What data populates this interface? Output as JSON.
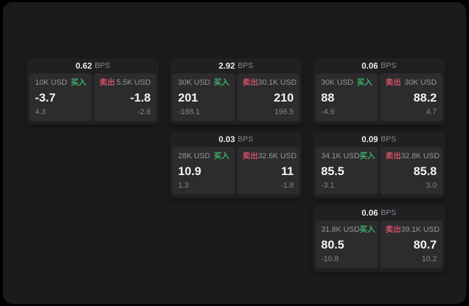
{
  "theme": {
    "page_bg": "#000000",
    "surface_bg": "#1b1b1d",
    "card_bg": "#202023",
    "panel_bg": "#2c2c2e",
    "buy_green": "#3fb069",
    "sell_red": "#ce5164",
    "text_primary": "#f4f4f6",
    "text_muted": "#86868b"
  },
  "labels": {
    "bps_suffix": "BPS",
    "buy": "买入",
    "sell": "卖出"
  },
  "cards": [
    {
      "bps": "0.62",
      "buy": {
        "size": "10K USD",
        "price": "-3.7",
        "delta": "4.3"
      },
      "sell": {
        "size": "5.5K USD",
        "price": "-1.8",
        "delta": "-2.6"
      }
    },
    {
      "bps": "2.92",
      "buy": {
        "size": "30K USD",
        "price": "201",
        "delta": "-188.1"
      },
      "sell": {
        "size": "30.1K USD",
        "price": "210",
        "delta": "196.5"
      }
    },
    {
      "bps": "0.06",
      "buy": {
        "size": "30K USD",
        "price": "88",
        "delta": "-4.9"
      },
      "sell": {
        "size": "30K USD",
        "price": "88.2",
        "delta": "4.7"
      }
    },
    {
      "bps": "0.03",
      "buy": {
        "size": "28K USD",
        "price": "10.9",
        "delta": "1.3"
      },
      "sell": {
        "size": "32.6K USD",
        "price": "11",
        "delta": "-1.8"
      }
    },
    {
      "bps": "0.09",
      "buy": {
        "size": "34.1K USD",
        "price": "85.5",
        "delta": "-3.1"
      },
      "sell": {
        "size": "32.8K USD",
        "price": "85.8",
        "delta": "3.0"
      }
    },
    {
      "bps": "0.06",
      "buy": {
        "size": "31.8K USD",
        "price": "80.5",
        "delta": "-10.8"
      },
      "sell": {
        "size": "39.1K USD",
        "price": "80.7",
        "delta": "10.2"
      }
    }
  ]
}
